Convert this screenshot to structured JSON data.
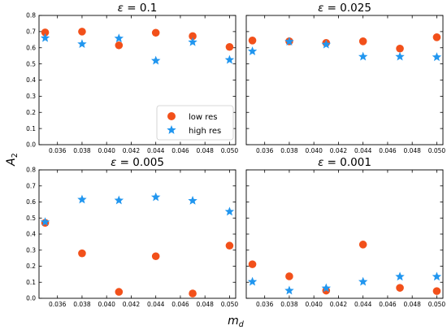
{
  "colors": {
    "low_res": "#f2501a",
    "high_res": "#2196ef"
  },
  "chart_data": {
    "type": "scatter",
    "xlabel": "m_d",
    "ylabel": "A_2",
    "xlim": [
      0.0345,
      0.0505
    ],
    "ylim": [
      0.0,
      0.8
    ],
    "x_ticks": [
      "0.036",
      "0.038",
      "0.040",
      "0.042",
      "0.044",
      "0.046",
      "0.048",
      "0.050"
    ],
    "y_ticks": [
      "0.0",
      "0.1",
      "0.2",
      "0.3",
      "0.4",
      "0.5",
      "0.6",
      "0.7",
      "0.8"
    ],
    "legend": {
      "placement": "lower-right of top-left panel",
      "entries": [
        "low res",
        "high res"
      ]
    },
    "grid": false,
    "panels": [
      {
        "title_prefix": "ε = ",
        "title_value": "0.1",
        "series": [
          {
            "name": "low res",
            "marker": "circle",
            "x": [
              0.035,
              0.038,
              0.041,
              0.044,
              0.047,
              0.05
            ],
            "y": [
              0.695,
              0.7,
              0.615,
              0.693,
              0.672,
              0.605
            ]
          },
          {
            "name": "high res",
            "marker": "star",
            "x": [
              0.035,
              0.038,
              0.041,
              0.044,
              0.047,
              0.05
            ],
            "y": [
              0.66,
              0.623,
              0.658,
              0.52,
              0.635,
              0.525
            ]
          }
        ]
      },
      {
        "title_prefix": "ε = ",
        "title_value": "0.025",
        "series": [
          {
            "name": "low res",
            "marker": "circle",
            "x": [
              0.035,
              0.038,
              0.041,
              0.044,
              0.047,
              0.05
            ],
            "y": [
              0.645,
              0.64,
              0.63,
              0.64,
              0.595,
              0.665
            ]
          },
          {
            "name": "high res",
            "marker": "star",
            "x": [
              0.035,
              0.038,
              0.041,
              0.044,
              0.047,
              0.05
            ],
            "y": [
              0.578,
              0.638,
              0.62,
              0.545,
              0.545,
              0.542
            ]
          }
        ]
      },
      {
        "title_prefix": "ε = ",
        "title_value": "0.005",
        "series": [
          {
            "name": "low res",
            "marker": "circle",
            "x": [
              0.035,
              0.038,
              0.041,
              0.044,
              0.047,
              0.05
            ],
            "y": [
              0.47,
              0.28,
              0.04,
              0.262,
              0.03,
              0.328
            ]
          },
          {
            "name": "high res",
            "marker": "star",
            "x": [
              0.035,
              0.038,
              0.041,
              0.044,
              0.047,
              0.05
            ],
            "y": [
              0.475,
              0.615,
              0.61,
              0.63,
              0.608,
              0.54
            ]
          }
        ]
      },
      {
        "title_prefix": "ε = ",
        "title_value": "0.001",
        "series": [
          {
            "name": "low res",
            "marker": "circle",
            "x": [
              0.035,
              0.038,
              0.041,
              0.044,
              0.047,
              0.05
            ],
            "y": [
              0.212,
              0.137,
              0.048,
              0.335,
              0.065,
              0.045
            ]
          },
          {
            "name": "high res",
            "marker": "star",
            "x": [
              0.035,
              0.038,
              0.041,
              0.044,
              0.047,
              0.05
            ],
            "y": [
              0.103,
              0.048,
              0.063,
              0.103,
              0.135,
              0.135
            ]
          }
        ]
      }
    ]
  }
}
